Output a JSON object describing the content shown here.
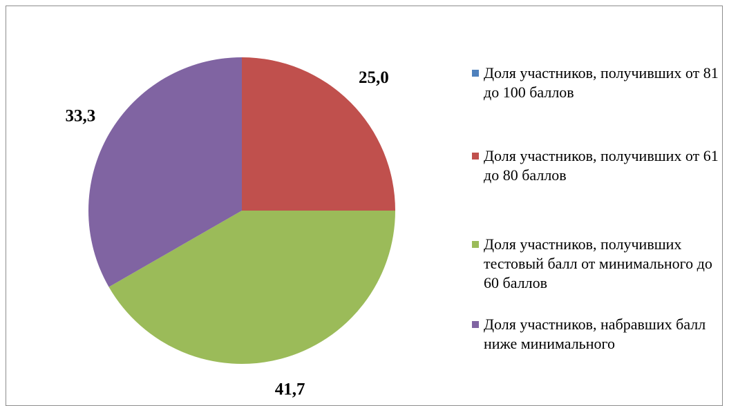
{
  "chart_data": {
    "type": "pie",
    "categories": [
      "Доля участников, получивших от 81 до 100 баллов",
      "Доля участников, получивших от 61 до 80 баллов",
      "Доля участников, получивших тестовый балл от минимального до 60 баллов",
      "Доля участников, набравших балл ниже минимального"
    ],
    "values": [
      0,
      25.0,
      41.7,
      33.3
    ],
    "value_labels": [
      null,
      "25,0",
      "41,7",
      "33,3"
    ],
    "colors": [
      "#4f81bd",
      "#c0504d",
      "#9bbb59",
      "#8064a2"
    ],
    "legend": "right"
  }
}
